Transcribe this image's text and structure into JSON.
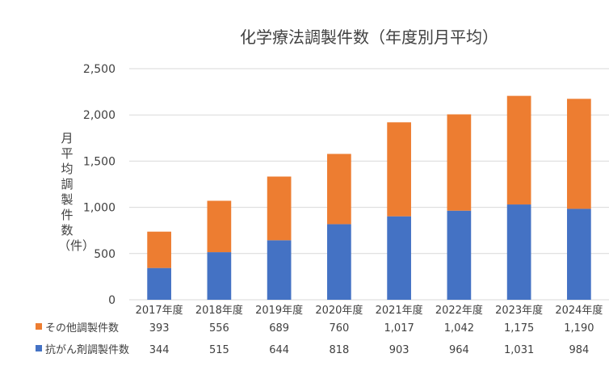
{
  "chart_data": {
    "type": "bar",
    "stacked": true,
    "title": "化学療法調製件数（年度別月平均）",
    "ylabel": "月平均調製件数（件）",
    "xlabel": "",
    "categories": [
      "2017年度",
      "2018年度",
      "2019年度",
      "2020年度",
      "2021年度",
      "2022年度",
      "2023年度",
      "2024年度"
    ],
    "series": [
      {
        "name": "抗がん剤調製件数",
        "color": "#4472c4",
        "values": [
          344,
          515,
          644,
          818,
          903,
          964,
          1031,
          984
        ]
      },
      {
        "name": "その他調製件数",
        "color": "#ed7d31",
        "values": [
          393,
          556,
          689,
          760,
          1017,
          1042,
          1175,
          1190
        ]
      }
    ],
    "ylim": [
      0,
      2500
    ],
    "yticks": [
      0,
      500,
      1000,
      1500,
      2000,
      2500
    ],
    "ytick_labels": [
      "0",
      "500",
      "1,000",
      "1,500",
      "2,000",
      "2,500"
    ],
    "grid": true,
    "data_table": {
      "rows": [
        {
          "name": "その他調製件数",
          "color": "#ed7d31",
          "values": [
            "393",
            "556",
            "689",
            "760",
            "1,017",
            "1,042",
            "1,175",
            "1,190"
          ]
        },
        {
          "name": "抗がん剤調製件数",
          "color": "#4472c4",
          "values": [
            "344",
            "515",
            "644",
            "818",
            "903",
            "964",
            "1,031",
            "984"
          ]
        }
      ]
    }
  }
}
